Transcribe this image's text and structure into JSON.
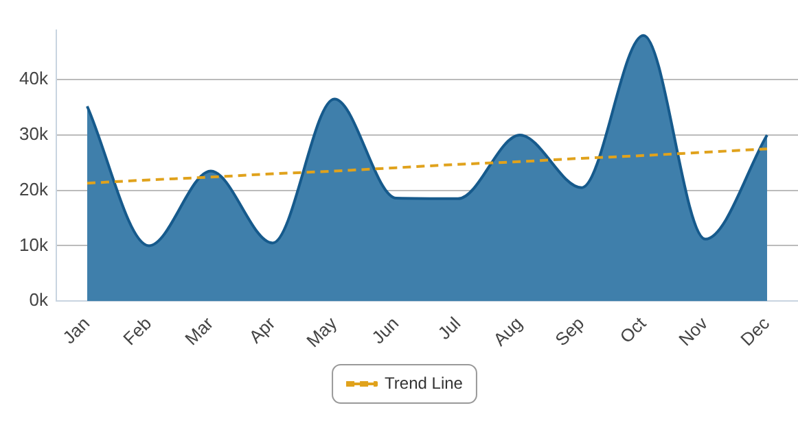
{
  "chart_data": {
    "type": "area",
    "categories": [
      "Jan",
      "Feb",
      "Mar",
      "Apr",
      "May",
      "Jun",
      "Jul",
      "Aug",
      "Sep",
      "Oct",
      "Nov",
      "Dec"
    ],
    "series": [
      {
        "color": "#3f7fab",
        "values": [
          35200,
          10000,
          23500,
          10500,
          36500,
          18600,
          18500,
          30000,
          20500,
          48000,
          11200,
          30000
        ]
      },
      {
        "type": "line",
        "name": "Trend Line",
        "color": "#e0a21c",
        "line_style": "dashed",
        "values": [
          21300,
          21900,
          22400,
          23000,
          23500,
          24100,
          24700,
          25200,
          25800,
          26300,
          26900,
          27500
        ]
      }
    ],
    "ylim": [
      0,
      49000
    ],
    "yticks": [
      {
        "value": 0,
        "label": "0k"
      },
      {
        "value": 10000,
        "label": "10k"
      },
      {
        "value": 20000,
        "label": "20k"
      },
      {
        "value": 30000,
        "label": "30k"
      },
      {
        "value": 40000,
        "label": "40k"
      }
    ],
    "grid": "y",
    "legend": "bottom",
    "marker": "none"
  }
}
